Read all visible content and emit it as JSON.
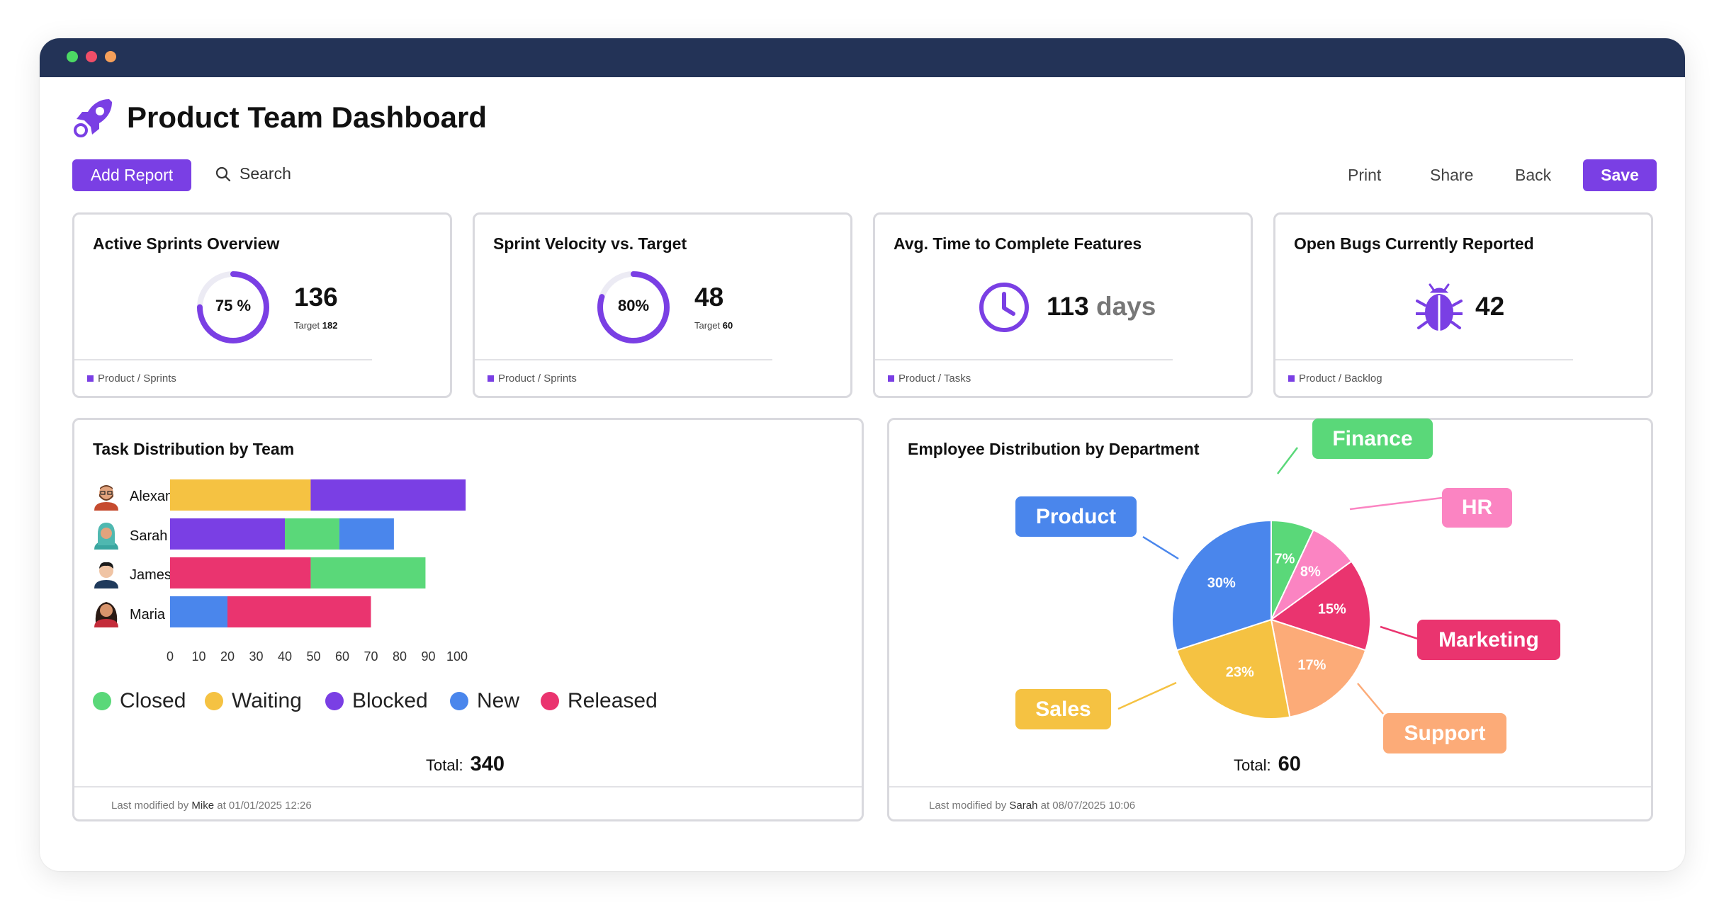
{
  "header": {
    "title": "Product Team Dashboard"
  },
  "toolbar": {
    "add_report": "Add Report",
    "search": "Search",
    "print": "Print",
    "share": "Share",
    "back": "Back",
    "save": "Save"
  },
  "kpis": [
    {
      "title": "Active Sprints Overview",
      "percent_label": "75 %",
      "percent": 75,
      "value": "136",
      "target_label": "Target",
      "target": "182",
      "breadcrumb": "Product / Sprints"
    },
    {
      "title": "Sprint Velocity vs. Target",
      "percent_label": "80%",
      "percent": 80,
      "value": "48",
      "target_label": "Target",
      "target": "60",
      "breadcrumb": "Product / Sprints"
    },
    {
      "title": "Avg. Time to Complete Features",
      "value": "113",
      "unit": "days",
      "icon": "clock-icon",
      "breadcrumb": "Product / Tasks"
    },
    {
      "title": "Open Bugs Currently Reported",
      "value": "42",
      "icon": "bug-icon",
      "breadcrumb": "Product / Backlog"
    }
  ],
  "colors": {
    "accent": "#7a3fe4",
    "closed": "#5ad879",
    "waiting": "#f5c242",
    "blocked": "#7a3fe4",
    "new": "#4a86ec",
    "released": "#ea346f"
  },
  "task_chart": {
    "title": "Task Distribution by Team",
    "total_label": "Total:",
    "total": "340",
    "footer": {
      "prefix": "Last modified by",
      "user": "Mike",
      "at": "at 01/01/2025 12:26"
    },
    "chart_data": {
      "type": "bar",
      "orientation": "horizontal",
      "stacked": true,
      "categories": [
        "Alexander",
        "Sarah",
        "James",
        "Maria"
      ],
      "series": [
        {
          "name": "Closed",
          "values": [
            0,
            19,
            40,
            0
          ]
        },
        {
          "name": "Waiting",
          "values": [
            49,
            0,
            0,
            0
          ]
        },
        {
          "name": "Blocked",
          "values": [
            54,
            40,
            0,
            0
          ]
        },
        {
          "name": "New",
          "values": [
            0,
            19,
            0,
            20
          ]
        },
        {
          "name": "Released",
          "values": [
            0,
            0,
            49,
            50
          ]
        }
      ],
      "segment_order": [
        [
          "Waiting",
          "Blocked"
        ],
        [
          "Blocked",
          "Closed",
          "New"
        ],
        [
          "Released",
          "Closed"
        ],
        [
          "New",
          "Released"
        ]
      ],
      "xticks": [
        "0",
        "10",
        "20",
        "30",
        "40",
        "50",
        "60",
        "70",
        "80",
        "90",
        "100"
      ],
      "xlim": [
        0,
        100
      ],
      "grid": false,
      "legend_position": "bottom"
    }
  },
  "dept_chart": {
    "title": "Employee Distribution by Department",
    "total_label": "Total:",
    "total": "60",
    "footer": {
      "prefix": "Last modified by",
      "user": "Sarah",
      "at": "at 08/07/2025 10:06"
    },
    "chart_data": {
      "type": "pie",
      "slices": [
        {
          "label": "Finance",
          "value": 7,
          "text": "7%",
          "color": "#5ad879"
        },
        {
          "label": "HR",
          "value": 8,
          "text": "8%",
          "color": "#fb84c2"
        },
        {
          "label": "Marketing",
          "value": 15,
          "text": "15%",
          "color": "#ea346f"
        },
        {
          "label": "Support",
          "value": 17,
          "text": "17%",
          "color": "#fcab78"
        },
        {
          "label": "Sales",
          "value": 23,
          "text": "23%",
          "color": "#f5c242"
        },
        {
          "label": "Product",
          "value": 30,
          "text": "30%",
          "color": "#4a86ec"
        }
      ],
      "legend_position": "callouts"
    }
  }
}
